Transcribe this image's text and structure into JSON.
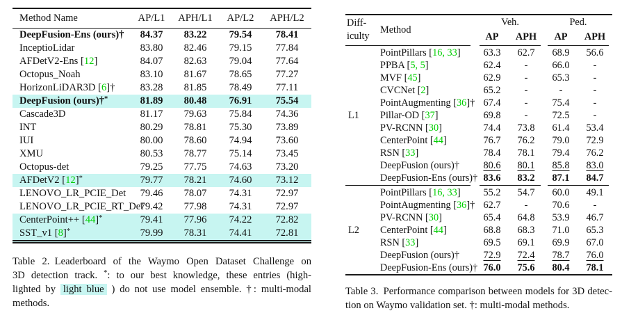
{
  "colors": {
    "highlight": "#c7f5f1",
    "cite": "#00cf00",
    "rule": "#1a1a1a",
    "text": "#111111"
  },
  "table2": {
    "columns": [
      "Method Name",
      "AP/L1",
      "APH/L1",
      "AP/L2",
      "APH/L2"
    ],
    "bold_columns": [
      "APH/L2"
    ],
    "rows": [
      {
        "name": "DeepFusion-Ens (ours)",
        "dagger": true,
        "bold": true,
        "values": [
          "84.37",
          "83.22",
          "79.54",
          "78.41"
        ]
      },
      {
        "name": "InceptioLidar",
        "values": [
          "83.80",
          "82.46",
          "79.15",
          "77.84"
        ]
      },
      {
        "name": "AFDetV2-Ens",
        "cite": "12",
        "values": [
          "84.07",
          "82.63",
          "79.04",
          "77.64"
        ]
      },
      {
        "name": "Octopus_Noah",
        "values": [
          "83.10",
          "81.67",
          "78.65",
          "77.27"
        ]
      },
      {
        "name": "HorizonLiDAR3D",
        "cite": "6",
        "dagger": true,
        "values": [
          "83.28",
          "81.85",
          "78.49",
          "77.11"
        ]
      },
      {
        "name": "DeepFusion (ours)",
        "dagger": true,
        "star": true,
        "bold": true,
        "highlight": true,
        "values": [
          "81.89",
          "80.48",
          "76.91",
          "75.54"
        ]
      },
      {
        "name": "Cascade3D",
        "values": [
          "81.17",
          "79.63",
          "75.84",
          "74.36"
        ]
      },
      {
        "name": "INT",
        "values": [
          "80.29",
          "78.81",
          "75.30",
          "73.89"
        ]
      },
      {
        "name": "IUI",
        "values": [
          "80.00",
          "78.60",
          "74.94",
          "73.60"
        ]
      },
      {
        "name": "XMU",
        "values": [
          "80.53",
          "78.77",
          "75.14",
          "73.45"
        ]
      },
      {
        "name": "Octopus-det",
        "values": [
          "79.25",
          "77.75",
          "74.63",
          "73.20"
        ]
      },
      {
        "name": "AFDetV2",
        "cite": "12",
        "star": true,
        "highlight": true,
        "values": [
          "79.77",
          "78.21",
          "74.60",
          "73.12"
        ]
      },
      {
        "name": "LENOVO_LR_PCIE_Det",
        "values": [
          "79.46",
          "78.07",
          "74.31",
          "72.97"
        ]
      },
      {
        "name": "LENOVO_LR_PCIE_RT_Det",
        "values": [
          "79.42",
          "77.98",
          "74.31",
          "72.97"
        ]
      },
      {
        "name": "CenterPoint++",
        "cite": "44",
        "star": true,
        "highlight": true,
        "values": [
          "79.41",
          "77.96",
          "74.22",
          "72.82"
        ]
      },
      {
        "name": "SST_v1",
        "cite": "8",
        "star": true,
        "highlight": true,
        "values": [
          "79.99",
          "78.31",
          "74.41",
          "72.81"
        ]
      }
    ],
    "caption": [
      [
        {
          "t": "Table 2. Leaderboard of the Waymo Open Dataset Challenge on"
        }
      ],
      [
        {
          "t": "3D detection track. "
        },
        {
          "t": "*",
          "sup": true
        },
        {
          "t": ": to our best knowledge, these entries (high-"
        }
      ],
      [
        {
          "t": "lighted by "
        },
        {
          "t": "light blue",
          "chip": true
        },
        {
          "t": " ) do not use model ensemble. †: multi-modal"
        }
      ],
      [
        {
          "t": "methods."
        }
      ]
    ]
  },
  "table3": {
    "difficulty_header": [
      "Diff-",
      "iculty"
    ],
    "method_header": "Method",
    "groups_header": [
      {
        "label": "Veh.",
        "cols": [
          "AP",
          "APH"
        ]
      },
      {
        "label": "Ped.",
        "cols": [
          "AP",
          "APH"
        ]
      }
    ],
    "sections": [
      {
        "difficulty": "L1",
        "rows": [
          {
            "name": "PointPillars",
            "cite": "16, 33",
            "values": [
              "63.3",
              "62.7",
              "68.9",
              "56.6"
            ]
          },
          {
            "name": "PPBA",
            "cite": "5, 5",
            "values": [
              "62.4",
              "-",
              "66.0",
              "-"
            ]
          },
          {
            "name": "MVF",
            "cite": "45",
            "values": [
              "62.9",
              "-",
              "65.3",
              "-"
            ]
          },
          {
            "name": "CVCNet",
            "cite": "2",
            "values": [
              "65.2",
              "-",
              "-",
              "-"
            ]
          },
          {
            "name": "PointAugmenting",
            "cite": "36",
            "dagger": true,
            "values": [
              "67.4",
              "-",
              "75.4",
              "-"
            ]
          },
          {
            "name": "Pillar-OD",
            "cite": "37",
            "values": [
              "69.8",
              "-",
              "72.5",
              "-"
            ]
          },
          {
            "name": "PV-RCNN",
            "cite": "30",
            "values": [
              "74.4",
              "73.8",
              "61.4",
              "53.4"
            ]
          },
          {
            "name": "CenterPoint",
            "cite": "44",
            "values": [
              "76.7",
              "76.2",
              "79.0",
              "72.9"
            ]
          },
          {
            "name": "RSN",
            "cite": "33",
            "values": [
              "78.4",
              "78.1",
              "79.4",
              "76.2"
            ]
          },
          {
            "name": "DeepFusion (ours)",
            "dagger": true,
            "style": "underline",
            "values": [
              "80.6",
              "80.1",
              "85.8",
              "83.0"
            ]
          },
          {
            "name": "DeepFusion-Ens (ours)",
            "dagger": true,
            "style": "bold",
            "values": [
              "83.6",
              "83.2",
              "87.1",
              "84.7"
            ]
          }
        ]
      },
      {
        "difficulty": "L2",
        "rows": [
          {
            "name": "PointPillars",
            "cite": "16, 33",
            "values": [
              "55.2",
              "54.7",
              "60.0",
              "49.1"
            ]
          },
          {
            "name": "PointAugmenting",
            "cite": "36",
            "dagger": true,
            "values": [
              "62.7",
              "-",
              "70.6",
              "-"
            ]
          },
          {
            "name": "PV-RCNN",
            "cite": "30",
            "values": [
              "65.4",
              "64.8",
              "53.9",
              "46.7"
            ]
          },
          {
            "name": "CenterPoint",
            "cite": "44",
            "values": [
              "68.8",
              "68.3",
              "71.0",
              "65.3"
            ]
          },
          {
            "name": "RSN",
            "cite": "33",
            "values": [
              "69.5",
              "69.1",
              "69.9",
              "67.0"
            ]
          },
          {
            "name": "DeepFusion (ours)",
            "dagger": true,
            "style": "underline",
            "values": [
              "72.9",
              "72.4",
              "78.7",
              "76.0"
            ]
          },
          {
            "name": "DeepFusion-Ens (ours)",
            "dagger": true,
            "style": "bold",
            "values": [
              "76.0",
              "75.6",
              "80.4",
              "78.1"
            ]
          }
        ]
      }
    ],
    "caption": [
      [
        {
          "t": "Table 3. Performance comparison between models for 3D detec-"
        }
      ],
      [
        {
          "t": "tion on Waymo validation set. †: multi-modal methods."
        }
      ]
    ]
  }
}
